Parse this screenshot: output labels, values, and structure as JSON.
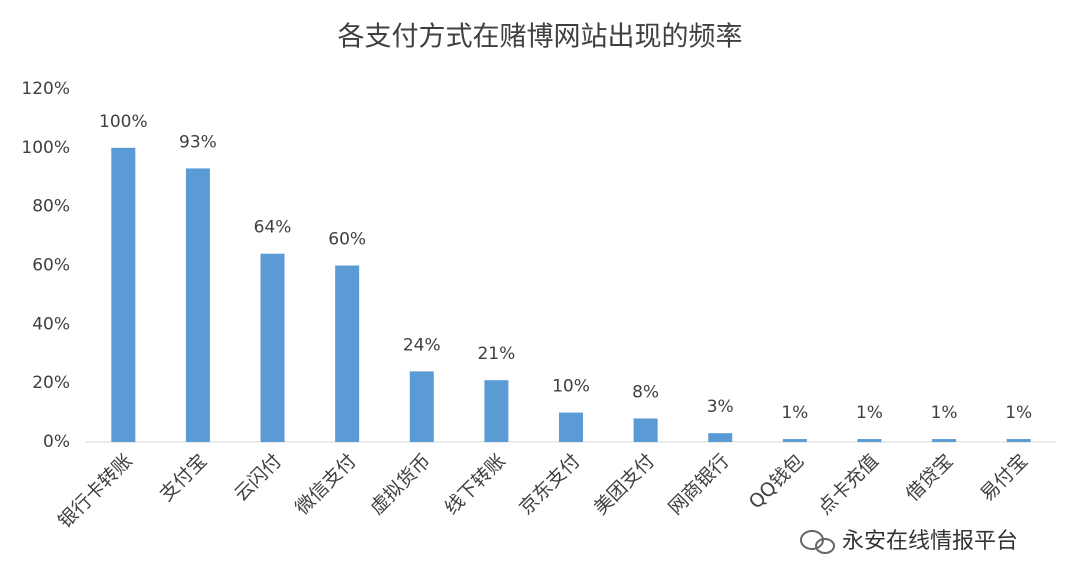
{
  "chart_data": {
    "type": "bar",
    "title": "各支付方式在赌博网站出现的频率",
    "categories": [
      "银行卡转账",
      "支付宝",
      "云闪付",
      "微信支付",
      "虚拟货币",
      "线下转账",
      "京东支付",
      "美团支付",
      "网商银行",
      "QQ钱包",
      "点卡充值",
      "借贷宝",
      "易付宝"
    ],
    "values": [
      100,
      93,
      64,
      60,
      24,
      21,
      10,
      8,
      3,
      1,
      1,
      1,
      1
    ],
    "value_labels": [
      "100%",
      "93%",
      "64%",
      "60%",
      "24%",
      "21%",
      "10%",
      "8%",
      "3%",
      "1%",
      "1%",
      "1%",
      "1%"
    ],
    "color": "#5b9bd5",
    "ylim": [
      0,
      120
    ],
    "yticks": [
      {
        "value": 0,
        "label": "0%"
      },
      {
        "value": 20,
        "label": "20%"
      },
      {
        "value": 40,
        "label": "40%"
      },
      {
        "value": 60,
        "label": "60%"
      },
      {
        "value": 80,
        "label": "80%"
      },
      {
        "value": 100,
        "label": "100%"
      },
      {
        "value": 120,
        "label": "120%"
      }
    ],
    "grid": false,
    "watermark": "永安在线情报平台"
  }
}
